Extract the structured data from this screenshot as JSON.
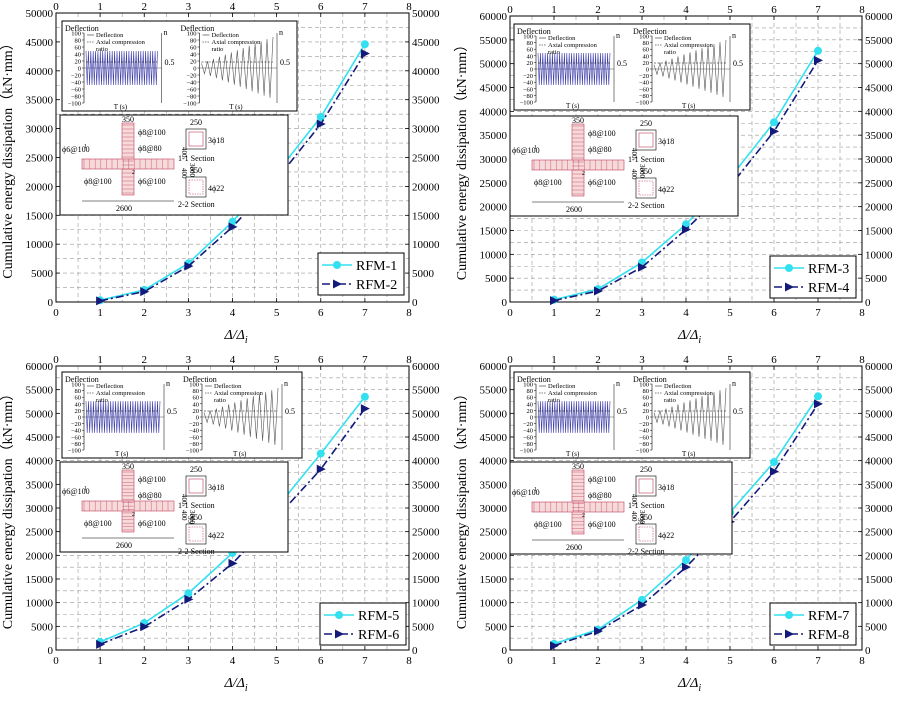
{
  "colors": {
    "series_a": "#33e0f0",
    "series_b": "#141a7a",
    "grid": "#9a9a9a",
    "axis": "#000000",
    "inset_signal": "#3a3aa8"
  },
  "common": {
    "ylabel": "Cumulative energy dissipation（kN·mm）",
    "xlabel_main": "Δ/Δ",
    "xlabel_sub": "i",
    "xticks": [
      "0",
      "1",
      "2",
      "3",
      "4",
      "5",
      "6",
      "7",
      "8"
    ]
  },
  "insets": {
    "load": {
      "deflection_label": "Deflection",
      "legend_line1": "Deflection",
      "legend_line2": "Axial compression",
      "legend_line3": "ratio",
      "n_label": "n",
      "ratio_value": "0.5",
      "time_label": "T (s)",
      "yticks": [
        "100",
        "80",
        "60",
        "40",
        "20",
        "0",
        "−20",
        "−40",
        "−60",
        "−80",
        "−100"
      ]
    },
    "section": {
      "dim_350_top": "350",
      "dim_250": "250",
      "rebar_1": "ϕ8@100",
      "rebar_2": "ϕ8@80",
      "rebar_3": "ϕ6@100",
      "rebar_4": "ϕ8@100",
      "rebar_5": "ϕ6@100",
      "dim_400": "400",
      "dim_3000": "3000",
      "dim_400b": "400",
      "dim_350_side": "350",
      "dim_2600": "2600",
      "section_11": "1-1 Section",
      "section_22": "2-2 Section",
      "bars_11": "3ϕ18",
      "bars_22": "4ϕ22",
      "dim_350_sec": "350",
      "mark_1": "1",
      "mark_2": "2"
    }
  },
  "chart_data": [
    {
      "type": "line",
      "panel": "top-left",
      "x": [
        1,
        2,
        3,
        4,
        5,
        6,
        7
      ],
      "series": [
        {
          "name": "RFM-1",
          "values": [
            300,
            2100,
            6700,
            13900,
            22300,
            32000,
            44600
          ]
        },
        {
          "name": "RFM-2",
          "values": [
            200,
            1800,
            6200,
            13000,
            21200,
            30800,
            43000
          ]
        }
      ],
      "xlim": [
        0,
        8
      ],
      "ylim": [
        0,
        50000
      ],
      "yticks": [
        "0",
        "5000",
        "10000",
        "15000",
        "20000",
        "25000",
        "30000",
        "35000",
        "40000",
        "45000",
        "50000"
      ],
      "legend_position": "bottom-right",
      "grid": true
    },
    {
      "type": "line",
      "panel": "top-right",
      "x": [
        1,
        2,
        3,
        4,
        5,
        6,
        7
      ],
      "series": [
        {
          "name": "RFM-3",
          "values": [
            500,
            2700,
            8300,
            16300,
            26000,
            37700,
            52700
          ]
        },
        {
          "name": "RFM-4",
          "values": [
            300,
            2300,
            7300,
            15200,
            24300,
            35800,
            50700
          ]
        }
      ],
      "xlim": [
        0,
        8
      ],
      "ylim": [
        0,
        60000
      ],
      "yticks": [
        "0",
        "5000",
        "10000",
        "15000",
        "20000",
        "25000",
        "30000",
        "35000",
        "40000",
        "45000",
        "50000",
        "55000",
        "60000"
      ],
      "legend_position": "bottom-right",
      "grid": true
    },
    {
      "type": "line",
      "panel": "bottom-left",
      "x": [
        1,
        2,
        3,
        4,
        5,
        6,
        7
      ],
      "series": [
        {
          "name": "RFM-5",
          "values": [
            1700,
            5700,
            12000,
            20500,
            30000,
            41500,
            53500
          ]
        },
        {
          "name": "RFM-6",
          "values": [
            1200,
            4900,
            10700,
            18300,
            28000,
            38200,
            51000
          ]
        }
      ],
      "xlim": [
        0,
        8
      ],
      "ylim": [
        0,
        60000
      ],
      "yticks": [
        "0",
        "5000",
        "10000",
        "15000",
        "20000",
        "25000",
        "30000",
        "35000",
        "40000",
        "45000",
        "50000",
        "55000",
        "60000"
      ],
      "legend_position": "bottom-right",
      "grid": true
    },
    {
      "type": "line",
      "panel": "bottom-right",
      "x": [
        1,
        2,
        3,
        4,
        5,
        6,
        7
      ],
      "series": [
        {
          "name": "RFM-7",
          "values": [
            1300,
            4300,
            10600,
            19000,
            29100,
            39700,
            53600
          ]
        },
        {
          "name": "RFM-8",
          "values": [
            900,
            4000,
            9500,
            17500,
            27100,
            37700,
            52000
          ]
        }
      ],
      "xlim": [
        0,
        8
      ],
      "ylim": [
        0,
        60000
      ],
      "yticks": [
        "0",
        "5000",
        "10000",
        "15000",
        "20000",
        "25000",
        "30000",
        "35000",
        "40000",
        "45000",
        "50000",
        "55000",
        "60000"
      ],
      "legend_position": "bottom-right",
      "grid": true
    }
  ]
}
